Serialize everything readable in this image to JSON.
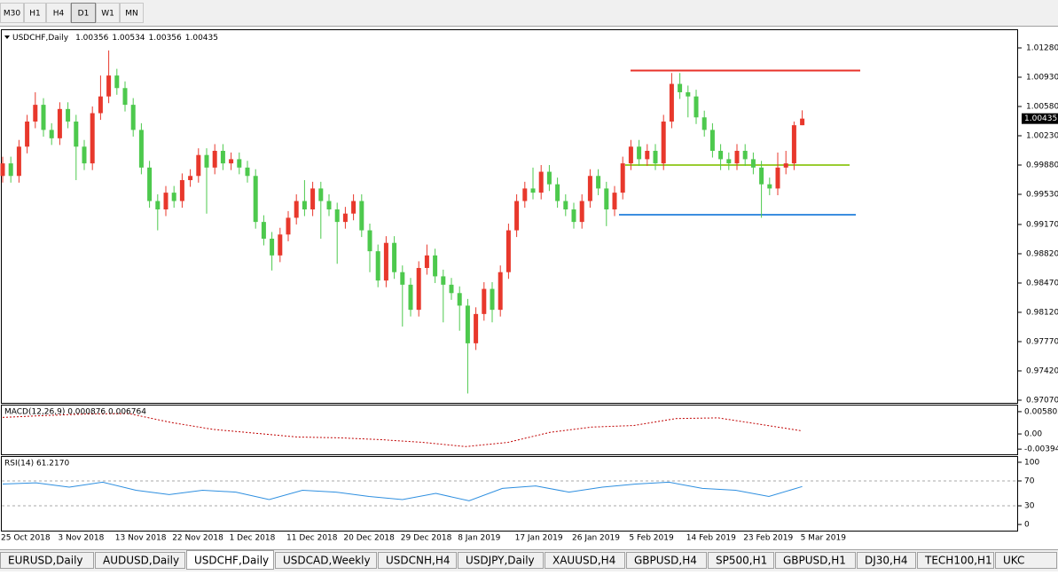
{
  "toolbar": {
    "timeframes": [
      "M30",
      "H1",
      "H4",
      "D1",
      "W1",
      "MN"
    ]
  },
  "chart_data": [
    {
      "type": "candlestick",
      "title": "USDCHF,Daily",
      "open": [
        0.9975,
        0.999,
        0.9975,
        1.001,
        1.004,
        1.006,
        1.003,
        1.002,
        1.0055,
        1.004,
        1.001,
        0.999,
        1.005,
        1.007,
        1.0095,
        1.008,
        1.006,
        1.003,
        0.9985,
        0.9945,
        0.9935,
        0.9955,
        0.9945,
        0.997,
        0.9975,
        1.0,
        0.9985,
        1.0005,
        0.999,
        0.9995,
        0.9985,
        0.9975,
        0.992,
        0.99,
        0.988,
        0.9905,
        0.9925,
        0.9945,
        0.9935,
        0.996,
        0.9945,
        0.9935,
        0.992,
        0.993,
        0.9945,
        0.991,
        0.9885,
        0.985,
        0.9895,
        0.986,
        0.9845,
        0.9815,
        0.9865,
        0.988,
        0.9855,
        0.9845,
        0.9835,
        0.982,
        0.9775,
        0.981,
        0.984,
        0.9815,
        0.986,
        0.991,
        0.9945,
        0.996,
        0.9955,
        0.998,
        0.9965,
        0.9945,
        0.9935,
        0.992,
        0.9945,
        0.9975,
        0.996,
        0.9935,
        0.9955,
        0.999,
        1.001,
        0.9995,
        1.0005,
        0.999,
        1.004,
        1.0085,
        1.0075,
        1.007,
        1.0045,
        1.003,
        1.0005,
        0.9995,
        0.999,
        1.0005,
        0.9995,
        0.9985,
        0.9965,
        0.996,
        0.9985,
        0.999,
        1.00356
      ],
      "high": [
        0.9998,
        0.9998,
        1.0018,
        1.0048,
        1.0075,
        1.0068,
        1.0038,
        1.0063,
        1.0063,
        1.0048,
        1.0018,
        1.0058,
        1.0095,
        1.0125,
        1.0103,
        1.0088,
        1.0068,
        1.0038,
        0.9993,
        0.9953,
        0.9963,
        0.9963,
        0.9978,
        0.9983,
        1.0008,
        1.0008,
        1.0013,
        1.0013,
        1.0003,
        1.0003,
        0.9993,
        0.9983,
        0.9928,
        0.9908,
        0.9913,
        0.9933,
        0.9953,
        0.997,
        0.9968,
        0.9968,
        0.9953,
        0.9943,
        0.9938,
        0.9953,
        0.9953,
        0.9918,
        0.9893,
        0.9903,
        0.9903,
        0.9868,
        0.9853,
        0.9873,
        0.9893,
        0.9888,
        0.9863,
        0.9853,
        0.9843,
        0.9828,
        0.9818,
        0.9848,
        0.9848,
        0.9868,
        0.9918,
        0.9953,
        0.9968,
        0.9985,
        0.9988,
        0.9988,
        0.9973,
        0.9953,
        0.9943,
        0.9953,
        0.9983,
        0.9983,
        0.9968,
        0.9963,
        0.9998,
        1.0018,
        1.0018,
        1.0013,
        1.0013,
        1.0048,
        1.0098,
        1.0098,
        1.0083,
        1.0078,
        1.0053,
        1.0038,
        1.0013,
        1.0003,
        1.0013,
        1.0013,
        1.0003,
        0.9993,
        0.9973,
        1.0003,
        1.0005,
        1.004,
        1.00534
      ],
      "low": [
        0.9967,
        0.9967,
        0.9967,
        1.0002,
        1.0032,
        1.0022,
        1.0012,
        1.0012,
        1.0032,
        0.997,
        0.9982,
        0.9982,
        1.0042,
        1.0062,
        1.0072,
        1.0052,
        1.0022,
        0.9977,
        0.9937,
        0.991,
        0.9927,
        0.9937,
        0.9937,
        0.9962,
        0.9967,
        0.993,
        0.9977,
        0.9982,
        0.9982,
        0.9977,
        0.9967,
        0.9912,
        0.9892,
        0.9862,
        0.9872,
        0.9897,
        0.9917,
        0.9927,
        0.9927,
        0.99,
        0.9927,
        0.987,
        0.9912,
        0.9922,
        0.9902,
        0.986,
        0.9842,
        0.9842,
        0.9852,
        0.9795,
        0.9807,
        0.9807,
        0.9857,
        0.9847,
        0.98,
        0.9827,
        0.979,
        0.9715,
        0.9767,
        0.9802,
        0.98,
        0.9807,
        0.9852,
        0.9902,
        0.9937,
        0.9947,
        0.9947,
        0.9957,
        0.9937,
        0.9927,
        0.9912,
        0.9912,
        0.9937,
        0.9952,
        0.9915,
        0.9927,
        0.9947,
        0.9982,
        0.9987,
        0.9987,
        0.9982,
        0.9982,
        1.0032,
        1.0067,
        1.0045,
        1.0037,
        1.0022,
        0.9997,
        0.9982,
        0.9982,
        0.9982,
        0.9987,
        0.9977,
        0.9925,
        0.9952,
        0.9952,
        0.9977,
        0.9982,
        1.00356
      ],
      "close": [
        0.999,
        0.9975,
        1.001,
        1.004,
        1.006,
        1.003,
        1.002,
        1.0055,
        1.004,
        1.001,
        0.999,
        1.005,
        1.007,
        1.0095,
        1.008,
        1.006,
        1.003,
        0.9985,
        0.9945,
        0.9935,
        0.9955,
        0.9945,
        0.997,
        0.9975,
        1.0,
        0.9985,
        1.0005,
        0.999,
        0.9995,
        0.9985,
        0.9975,
        0.992,
        0.99,
        0.988,
        0.9905,
        0.9925,
        0.9945,
        0.9935,
        0.996,
        0.9945,
        0.9935,
        0.992,
        0.993,
        0.9945,
        0.991,
        0.9885,
        0.985,
        0.9895,
        0.986,
        0.9845,
        0.9815,
        0.9865,
        0.988,
        0.9855,
        0.9845,
        0.9835,
        0.982,
        0.9775,
        0.981,
        0.984,
        0.9815,
        0.986,
        0.991,
        0.9945,
        0.996,
        0.9955,
        0.998,
        0.9965,
        0.9945,
        0.9935,
        0.992,
        0.9945,
        0.9975,
        0.996,
        0.9935,
        0.9955,
        0.999,
        1.001,
        0.9995,
        1.0005,
        0.999,
        1.004,
        1.0085,
        1.0075,
        1.007,
        1.0045,
        1.003,
        1.0005,
        0.9995,
        0.999,
        1.0005,
        0.9995,
        0.9985,
        0.9965,
        0.996,
        0.9985,
        0.999,
        1.00356,
        1.00435
      ],
      "up_color": "#e8382c",
      "down_color": "#4dc94d",
      "ylim": [
        0.97038,
        1.01492
      ],
      "yticks": [
        {
          "value": 1.0128,
          "label": "1.01280"
        },
        {
          "value": 1.0093,
          "label": "1.00930"
        },
        {
          "value": 1.0058,
          "label": "1.00580"
        },
        {
          "value": 1.0023,
          "label": "1.00230"
        },
        {
          "value": 0.9988,
          "label": "0.99880"
        },
        {
          "value": 0.9953,
          "label": "0.99530"
        },
        {
          "value": 0.9917,
          "label": "0.99170"
        },
        {
          "value": 0.9882,
          "label": "0.98820"
        },
        {
          "value": 0.9847,
          "label": "0.98470"
        },
        {
          "value": 0.9812,
          "label": "0.98120"
        },
        {
          "value": 0.9777,
          "label": "0.97770"
        },
        {
          "value": 0.9742,
          "label": "0.97420"
        },
        {
          "value": 0.9707,
          "label": "0.97070"
        }
      ],
      "x_labels": [
        "25 Oct 2018",
        "3 Nov 2018",
        "13 Nov 2018",
        "22 Nov 2018",
        "1 Dec 2018",
        "11 Dec 2018",
        "20 Dec 2018",
        "29 Dec 2018",
        "8 Jan 2019",
        "17 Jan 2019",
        "26 Jan 2019",
        "5 Feb 2019",
        "14 Feb 2019",
        "23 Feb 2019",
        "5 Mar 2019"
      ],
      "levels": [
        {
          "value": 1.0101,
          "color": "#e8322a"
        },
        {
          "value": 0.9988,
          "color": "#9acd32"
        },
        {
          "value": 0.99286,
          "color": "#3c8ee0"
        }
      ]
    },
    {
      "type": "line",
      "title": "MACD(12,26,9) 0.000876 0.006764",
      "values": [
        0.0043,
        0.0048,
        0.0052,
        0.0053,
        0.003,
        0.0012,
        0.0002,
        -0.0008,
        -0.001,
        -0.0015,
        -0.0022,
        -0.0033,
        -0.0022,
        0.0004,
        0.0018,
        0.0022,
        0.004,
        0.0042,
        0.0025,
        0.0008
      ],
      "color": "#c00000",
      "dashed": true,
      "ylim": [
        -0.0053,
        0.0074
      ],
      "yticks": [
        0.005802,
        {
          "value": 0,
          "label": "0.00"
        },
        -0.003945
      ]
    },
    {
      "type": "line",
      "title": "RSI(14) 61.2170",
      "values": [
        65,
        67,
        60,
        68,
        55,
        48,
        55,
        52,
        40,
        55,
        52,
        45,
        40,
        50,
        38,
        58,
        62,
        52,
        60,
        65,
        68,
        58,
        55,
        45,
        61
      ],
      "color": "#2e8fe0",
      "dashed": false,
      "ylim": [
        -9.9,
        108.5
      ],
      "yticks": [
        100,
        70,
        30,
        0
      ]
    }
  ],
  "tabs": [
    "EURUSD,Daily",
    "AUDUSD,Daily",
    "USDCHF,Daily",
    "USDCAD,Weekly",
    "USDCNH,H4",
    "USDJPY,Daily",
    "XAUUSD,H4",
    "GBPUSD,H4",
    "SP500,H1",
    "GBPUSD,H1",
    "DJ30,H4",
    "TECH100,H1",
    "UKC"
  ]
}
